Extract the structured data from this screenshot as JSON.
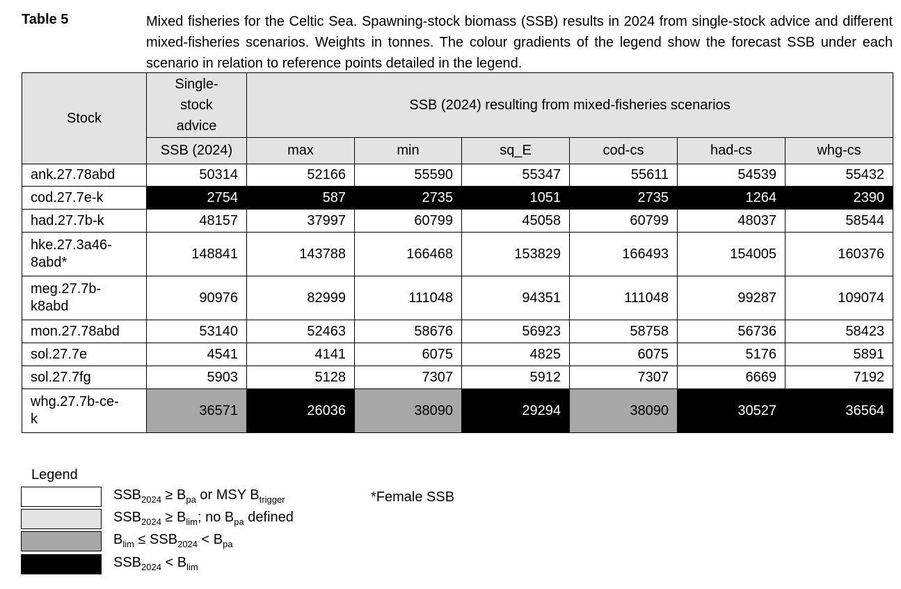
{
  "caption": {
    "label": "Table 5",
    "text": "Mixed fisheries for the Celtic Sea. Spawning-stock biomass (SSB) results in 2024 from single-stock advice and different mixed-fisheries scenarios. Weights in tonnes. The colour gradients of the legend show the forecast SSB under each scenario in relation to reference points detailed in the legend."
  },
  "table": {
    "header_stock": "Stock",
    "header_single": "Single-stock advice",
    "header_mixed": "SSB (2024) resulting from mixed-fisheries scenarios",
    "columns": [
      "SSB (2024)",
      "max",
      "min",
      "sq_E",
      "cod-cs",
      "had-cs",
      "whg-cs"
    ],
    "rows": [
      {
        "stock": "ank.27.78abd",
        "values": [
          "50314",
          "52166",
          "55590",
          "55347",
          "55611",
          "54539",
          "55432"
        ],
        "status": [
          "white",
          "white",
          "white",
          "white",
          "white",
          "white",
          "white"
        ]
      },
      {
        "stock": "cod.27.7e-k",
        "values": [
          "2754",
          "587",
          "2735",
          "1051",
          "2735",
          "1264",
          "2390"
        ],
        "status": [
          "black",
          "black",
          "black",
          "black",
          "black",
          "black",
          "black"
        ]
      },
      {
        "stock": "had.27.7b-k",
        "values": [
          "48157",
          "37997",
          "60799",
          "45058",
          "60799",
          "48037",
          "58544"
        ],
        "status": [
          "white",
          "white",
          "white",
          "white",
          "white",
          "white",
          "white"
        ]
      },
      {
        "stock": "hke.27.3a46-8abd*",
        "values": [
          "148841",
          "143788",
          "166468",
          "153829",
          "166493",
          "154005",
          "160376"
        ],
        "status": [
          "white",
          "white",
          "white",
          "white",
          "white",
          "white",
          "white"
        ]
      },
      {
        "stock": "meg.27.7b-k8abd",
        "values": [
          "90976",
          "82999",
          "111048",
          "94351",
          "111048",
          "99287",
          "109074"
        ],
        "status": [
          "white",
          "white",
          "white",
          "white",
          "white",
          "white",
          "white"
        ]
      },
      {
        "stock": "mon.27.78abd",
        "values": [
          "53140",
          "52463",
          "58676",
          "56923",
          "58758",
          "56736",
          "58423"
        ],
        "status": [
          "white",
          "white",
          "white",
          "white",
          "white",
          "white",
          "white"
        ]
      },
      {
        "stock": "sol.27.7e",
        "values": [
          "4541",
          "4141",
          "6075",
          "4825",
          "6075",
          "5176",
          "5891"
        ],
        "status": [
          "white",
          "white",
          "white",
          "white",
          "white",
          "white",
          "white"
        ]
      },
      {
        "stock": "sol.27.7fg",
        "values": [
          "5903",
          "5128",
          "7307",
          "5912",
          "7307",
          "6669",
          "7192"
        ],
        "status": [
          "white",
          "white",
          "white",
          "white",
          "white",
          "white",
          "white"
        ]
      },
      {
        "stock": "whg.27.7b-ce-k",
        "values": [
          "36571",
          "26036",
          "38090",
          "29294",
          "38090",
          "30527",
          "36564"
        ],
        "status": [
          "grey",
          "black",
          "grey",
          "black",
          "grey",
          "black",
          "black"
        ]
      }
    ]
  },
  "legend": {
    "title": "Legend",
    "items": [
      {
        "color": "#ffffff",
        "parts": [
          [
            "SSB",
            ""
          ],
          [
            "2024",
            "sub"
          ],
          [
            " ≥ B",
            ""
          ],
          [
            "pa",
            "sub"
          ],
          [
            " or MSY B",
            ""
          ],
          [
            "trigger",
            "sub"
          ]
        ]
      },
      {
        "color": "#e3e3e3",
        "parts": [
          [
            "SSB",
            ""
          ],
          [
            "2024",
            "sub"
          ],
          [
            " ≥ B",
            ""
          ],
          [
            "lim",
            "sub"
          ],
          [
            "; no B",
            ""
          ],
          [
            "pa",
            "sub"
          ],
          [
            " defined",
            ""
          ]
        ]
      },
      {
        "color": "#a8a8a8",
        "parts": [
          [
            "B",
            ""
          ],
          [
            "lim",
            "sub"
          ],
          [
            " ≤ SSB",
            ""
          ],
          [
            "2024",
            "sub"
          ],
          [
            " < B",
            ""
          ],
          [
            "pa",
            "sub"
          ]
        ]
      },
      {
        "color": "#000000",
        "parts": [
          [
            "SSB",
            ""
          ],
          [
            "2024",
            "sub"
          ],
          [
            " < B",
            ""
          ],
          [
            "lim",
            "sub"
          ]
        ]
      }
    ],
    "note": "*Female SSB"
  }
}
